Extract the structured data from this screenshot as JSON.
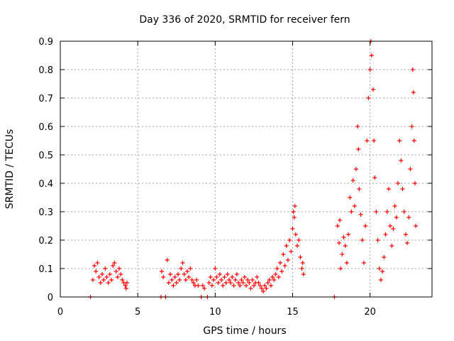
{
  "chart_data": {
    "type": "scatter",
    "title": "Day 336 of 2020, SRMTID for receiver fern",
    "xlabel": "GPS time / hours",
    "ylabel": "SRMTID / TECUs",
    "xlim": [
      0,
      24
    ],
    "ylim": [
      0,
      0.9
    ],
    "xticks": [
      0,
      5,
      10,
      15,
      20
    ],
    "yticks": [
      0,
      0.1,
      0.2,
      0.3,
      0.4,
      0.5,
      0.6,
      0.7,
      0.8,
      0.9
    ],
    "grid": true,
    "marker": "+",
    "color": "#ff0000",
    "series": [
      {
        "name": "SRMTID",
        "points": [
          [
            1.95,
            0.0
          ],
          [
            2.1,
            0.06
          ],
          [
            2.2,
            0.11
          ],
          [
            2.3,
            0.09
          ],
          [
            2.4,
            0.12
          ],
          [
            2.5,
            0.07
          ],
          [
            2.6,
            0.05
          ],
          [
            2.7,
            0.08
          ],
          [
            2.8,
            0.06
          ],
          [
            2.9,
            0.1
          ],
          [
            3.0,
            0.07
          ],
          [
            3.1,
            0.05
          ],
          [
            3.2,
            0.08
          ],
          [
            3.3,
            0.06
          ],
          [
            3.4,
            0.11
          ],
          [
            3.5,
            0.12
          ],
          [
            3.6,
            0.09
          ],
          [
            3.7,
            0.07
          ],
          [
            3.8,
            0.1
          ],
          [
            3.9,
            0.08
          ],
          [
            4.0,
            0.06
          ],
          [
            4.1,
            0.05
          ],
          [
            4.2,
            0.04
          ],
          [
            4.3,
            0.05
          ],
          [
            4.25,
            0.03
          ],
          [
            6.5,
            0.0
          ],
          [
            6.55,
            0.09
          ],
          [
            6.65,
            0.07
          ],
          [
            6.8,
            0.0
          ],
          [
            6.9,
            0.13
          ],
          [
            7.0,
            0.05
          ],
          [
            7.1,
            0.08
          ],
          [
            7.2,
            0.06
          ],
          [
            7.3,
            0.04
          ],
          [
            7.4,
            0.07
          ],
          [
            7.5,
            0.05
          ],
          [
            7.6,
            0.08
          ],
          [
            7.7,
            0.06
          ],
          [
            7.8,
            0.1
          ],
          [
            7.9,
            0.12
          ],
          [
            8.0,
            0.08
          ],
          [
            8.1,
            0.06
          ],
          [
            8.2,
            0.09
          ],
          [
            8.3,
            0.07
          ],
          [
            8.4,
            0.1
          ],
          [
            8.5,
            0.06
          ],
          [
            8.6,
            0.05
          ],
          [
            8.7,
            0.04
          ],
          [
            8.8,
            0.06
          ],
          [
            8.9,
            0.04
          ],
          [
            9.1,
            0.0
          ],
          [
            9.2,
            0.04
          ],
          [
            9.3,
            0.03
          ],
          [
            9.5,
            0.0
          ],
          [
            9.6,
            0.05
          ],
          [
            9.7,
            0.07
          ],
          [
            9.8,
            0.04
          ],
          [
            9.9,
            0.06
          ],
          [
            10.0,
            0.1
          ],
          [
            10.1,
            0.07
          ],
          [
            10.2,
            0.05
          ],
          [
            10.3,
            0.08
          ],
          [
            10.4,
            0.06
          ],
          [
            10.5,
            0.04
          ],
          [
            10.6,
            0.07
          ],
          [
            10.7,
            0.05
          ],
          [
            10.8,
            0.08
          ],
          [
            10.9,
            0.06
          ],
          [
            11.0,
            0.05
          ],
          [
            11.1,
            0.07
          ],
          [
            11.2,
            0.04
          ],
          [
            11.3,
            0.06
          ],
          [
            11.4,
            0.08
          ],
          [
            11.5,
            0.05
          ],
          [
            11.6,
            0.04
          ],
          [
            11.7,
            0.06
          ],
          [
            11.8,
            0.05
          ],
          [
            11.9,
            0.07
          ],
          [
            12.0,
            0.04
          ],
          [
            12.1,
            0.06
          ],
          [
            12.2,
            0.05
          ],
          [
            12.3,
            0.03
          ],
          [
            12.4,
            0.06
          ],
          [
            12.5,
            0.04
          ],
          [
            12.6,
            0.05
          ],
          [
            12.7,
            0.07
          ],
          [
            12.8,
            0.05
          ],
          [
            12.9,
            0.04
          ],
          [
            13.0,
            0.03
          ],
          [
            13.1,
            0.02
          ],
          [
            13.2,
            0.04
          ],
          [
            13.3,
            0.03
          ],
          [
            13.4,
            0.05
          ],
          [
            13.5,
            0.06
          ],
          [
            13.6,
            0.04
          ],
          [
            13.7,
            0.07
          ],
          [
            13.8,
            0.06
          ],
          [
            13.9,
            0.08
          ],
          [
            14.0,
            0.1
          ],
          [
            14.1,
            0.07
          ],
          [
            14.2,
            0.12
          ],
          [
            14.3,
            0.09
          ],
          [
            14.4,
            0.15
          ],
          [
            14.5,
            0.11
          ],
          [
            14.6,
            0.18
          ],
          [
            14.7,
            0.13
          ],
          [
            14.8,
            0.2
          ],
          [
            14.9,
            0.16
          ],
          [
            15.0,
            0.24
          ],
          [
            15.05,
            0.3
          ],
          [
            15.1,
            0.28
          ],
          [
            15.15,
            0.32
          ],
          [
            15.2,
            0.22
          ],
          [
            15.3,
            0.18
          ],
          [
            15.4,
            0.2
          ],
          [
            15.5,
            0.14
          ],
          [
            15.6,
            0.1
          ],
          [
            15.7,
            0.08
          ],
          [
            15.65,
            0.12
          ],
          [
            17.7,
            0.0
          ],
          [
            17.9,
            0.25
          ],
          [
            18.0,
            0.19
          ],
          [
            18.05,
            0.27
          ],
          [
            18.1,
            0.1
          ],
          [
            18.2,
            0.15
          ],
          [
            18.3,
            0.21
          ],
          [
            18.4,
            0.18
          ],
          [
            18.5,
            0.12
          ],
          [
            18.6,
            0.22
          ],
          [
            18.7,
            0.35
          ],
          [
            18.8,
            0.3
          ],
          [
            18.9,
            0.41
          ],
          [
            19.0,
            0.32
          ],
          [
            19.1,
            0.45
          ],
          [
            19.2,
            0.6
          ],
          [
            19.25,
            0.52
          ],
          [
            19.3,
            0.38
          ],
          [
            19.4,
            0.29
          ],
          [
            19.5,
            0.2
          ],
          [
            19.6,
            0.12
          ],
          [
            19.7,
            0.25
          ],
          [
            19.8,
            0.55
          ],
          [
            19.9,
            0.7
          ],
          [
            20.0,
            0.8
          ],
          [
            20.05,
            0.9
          ],
          [
            20.1,
            0.85
          ],
          [
            20.2,
            0.73
          ],
          [
            20.25,
            0.55
          ],
          [
            20.3,
            0.42
          ],
          [
            20.4,
            0.3
          ],
          [
            20.5,
            0.2
          ],
          [
            20.6,
            0.1
          ],
          [
            20.7,
            0.06
          ],
          [
            20.8,
            0.09
          ],
          [
            20.9,
            0.14
          ],
          [
            21.0,
            0.22
          ],
          [
            21.1,
            0.3
          ],
          [
            21.2,
            0.38
          ],
          [
            21.3,
            0.25
          ],
          [
            21.4,
            0.18
          ],
          [
            21.5,
            0.24
          ],
          [
            21.6,
            0.32
          ],
          [
            21.7,
            0.28
          ],
          [
            21.8,
            0.4
          ],
          [
            21.9,
            0.55
          ],
          [
            22.0,
            0.48
          ],
          [
            22.1,
            0.38
          ],
          [
            22.2,
            0.3
          ],
          [
            22.3,
            0.22
          ],
          [
            22.4,
            0.19
          ],
          [
            22.5,
            0.28
          ],
          [
            22.6,
            0.45
          ],
          [
            22.7,
            0.6
          ],
          [
            22.75,
            0.8
          ],
          [
            22.8,
            0.72
          ],
          [
            22.85,
            0.55
          ],
          [
            22.9,
            0.4
          ],
          [
            22.95,
            0.25
          ]
        ]
      }
    ]
  }
}
